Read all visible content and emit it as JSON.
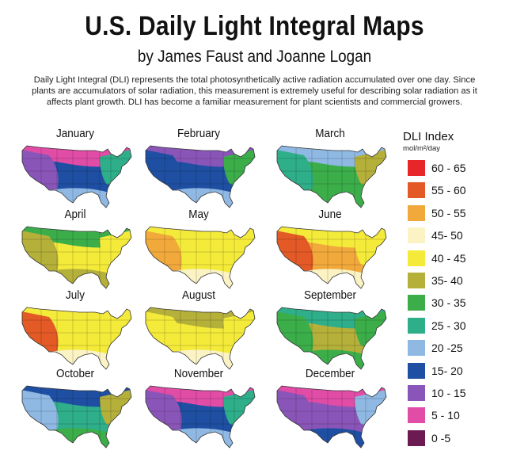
{
  "title": "U.S. Daily Light Integral Maps",
  "subtitle": "by James Faust and Joanne Logan",
  "description": "Daily Light Integral (DLI) represents the total photosynthetically active radiation accumulated over one day. Since plants are accumulators of solar radiation, this measurement is extremely useful for describing solar radiation as it affects plant growth. DLI has become a familiar measurement for plant scientists and commercial growers.",
  "legend": {
    "title": "DLI Index",
    "units": "mol/m²/day",
    "items": [
      {
        "label": "60 - 65",
        "color": "#e8262a"
      },
      {
        "label": "55 - 60",
        "color": "#e35a26"
      },
      {
        "label": "50 - 55",
        "color": "#f2a93b"
      },
      {
        "label": "45- 50",
        "color": "#fbf3c4"
      },
      {
        "label": "40 - 45",
        "color": "#f4ea3a"
      },
      {
        "label": "35- 40",
        "color": "#b5b03a"
      },
      {
        "label": "30 - 35",
        "color": "#3bae4a"
      },
      {
        "label": "25 - 30",
        "color": "#2fae8a"
      },
      {
        "label": "20 -25",
        "color": "#8fb8e3"
      },
      {
        "label": "15- 20",
        "color": "#1f4fa3"
      },
      {
        "label": "10 - 15",
        "color": "#8a55b8"
      },
      {
        "label": "5 - 10",
        "color": "#e04ca6"
      },
      {
        "label": "0 -5",
        "color": "#6b1a52"
      }
    ]
  },
  "months": [
    {
      "name": "January",
      "bands": [
        "#e04ca6",
        "#8a55b8",
        "#1f4fa3",
        "#8fb8e3",
        "#2fae8a"
      ]
    },
    {
      "name": "February",
      "bands": [
        "#8a55b8",
        "#1f4fa3",
        "#1f4fa3",
        "#8fb8e3",
        "#3bae4a"
      ]
    },
    {
      "name": "March",
      "bands": [
        "#8fb8e3",
        "#2fae8a",
        "#3bae4a",
        "#3bae4a",
        "#b5b03a"
      ]
    },
    {
      "name": "April",
      "bands": [
        "#3bae4a",
        "#b5b03a",
        "#f4ea3a",
        "#b5b03a",
        "#f4ea3a"
      ]
    },
    {
      "name": "May",
      "bands": [
        "#f4ea3a",
        "#f2a93b",
        "#f4ea3a",
        "#fbf3c4",
        "#f4ea3a"
      ]
    },
    {
      "name": "June",
      "bands": [
        "#f4ea3a",
        "#e35a26",
        "#f2a93b",
        "#fbf3c4",
        "#f4ea3a"
      ]
    },
    {
      "name": "July",
      "bands": [
        "#f4ea3a",
        "#e35a26",
        "#f4ea3a",
        "#fbf3c4",
        "#f4ea3a"
      ]
    },
    {
      "name": "August",
      "bands": [
        "#b5b03a",
        "#f4ea3a",
        "#f4ea3a",
        "#fbf3c4",
        "#f4ea3a"
      ]
    },
    {
      "name": "September",
      "bands": [
        "#2fae8a",
        "#3bae4a",
        "#b5b03a",
        "#3bae4a",
        "#3bae4a"
      ]
    },
    {
      "name": "October",
      "bands": [
        "#1f4fa3",
        "#8fb8e3",
        "#2fae8a",
        "#3bae4a",
        "#b5b03a"
      ]
    },
    {
      "name": "November",
      "bands": [
        "#e04ca6",
        "#8a55b8",
        "#1f4fa3",
        "#8fb8e3",
        "#2fae8a"
      ]
    },
    {
      "name": "December",
      "bands": [
        "#e04ca6",
        "#8a55b8",
        "#8a55b8",
        "#1f4fa3",
        "#8fb8e3"
      ]
    }
  ]
}
